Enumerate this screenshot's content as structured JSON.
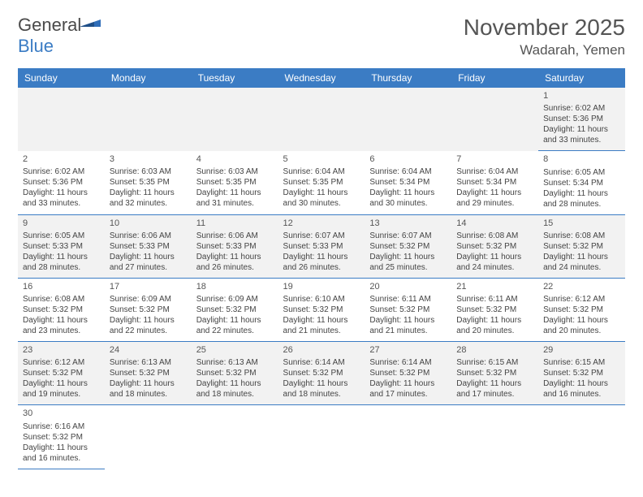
{
  "header": {
    "logo_general": "General",
    "logo_blue": "Blue",
    "month_title": "November 2025",
    "location": "Wadarah, Yemen"
  },
  "colors": {
    "header_bg": "#3b7cc4",
    "header_text": "#ffffff",
    "row_alt_bg": "#f2f2f2",
    "border": "#3b7cc4",
    "text": "#444444",
    "title_text": "#555555"
  },
  "calendar": {
    "day_headers": [
      "Sunday",
      "Monday",
      "Tuesday",
      "Wednesday",
      "Thursday",
      "Friday",
      "Saturday"
    ],
    "weeks": [
      [
        null,
        null,
        null,
        null,
        null,
        null,
        {
          "n": "1",
          "sr": "6:02 AM",
          "ss": "5:36 PM",
          "dl": "11 hours and 33 minutes."
        }
      ],
      [
        {
          "n": "2",
          "sr": "6:02 AM",
          "ss": "5:36 PM",
          "dl": "11 hours and 33 minutes."
        },
        {
          "n": "3",
          "sr": "6:03 AM",
          "ss": "5:35 PM",
          "dl": "11 hours and 32 minutes."
        },
        {
          "n": "4",
          "sr": "6:03 AM",
          "ss": "5:35 PM",
          "dl": "11 hours and 31 minutes."
        },
        {
          "n": "5",
          "sr": "6:04 AM",
          "ss": "5:35 PM",
          "dl": "11 hours and 30 minutes."
        },
        {
          "n": "6",
          "sr": "6:04 AM",
          "ss": "5:34 PM",
          "dl": "11 hours and 30 minutes."
        },
        {
          "n": "7",
          "sr": "6:04 AM",
          "ss": "5:34 PM",
          "dl": "11 hours and 29 minutes."
        },
        {
          "n": "8",
          "sr": "6:05 AM",
          "ss": "5:34 PM",
          "dl": "11 hours and 28 minutes."
        }
      ],
      [
        {
          "n": "9",
          "sr": "6:05 AM",
          "ss": "5:33 PM",
          "dl": "11 hours and 28 minutes."
        },
        {
          "n": "10",
          "sr": "6:06 AM",
          "ss": "5:33 PM",
          "dl": "11 hours and 27 minutes."
        },
        {
          "n": "11",
          "sr": "6:06 AM",
          "ss": "5:33 PM",
          "dl": "11 hours and 26 minutes."
        },
        {
          "n": "12",
          "sr": "6:07 AM",
          "ss": "5:33 PM",
          "dl": "11 hours and 26 minutes."
        },
        {
          "n": "13",
          "sr": "6:07 AM",
          "ss": "5:32 PM",
          "dl": "11 hours and 25 minutes."
        },
        {
          "n": "14",
          "sr": "6:08 AM",
          "ss": "5:32 PM",
          "dl": "11 hours and 24 minutes."
        },
        {
          "n": "15",
          "sr": "6:08 AM",
          "ss": "5:32 PM",
          "dl": "11 hours and 24 minutes."
        }
      ],
      [
        {
          "n": "16",
          "sr": "6:08 AM",
          "ss": "5:32 PM",
          "dl": "11 hours and 23 minutes."
        },
        {
          "n": "17",
          "sr": "6:09 AM",
          "ss": "5:32 PM",
          "dl": "11 hours and 22 minutes."
        },
        {
          "n": "18",
          "sr": "6:09 AM",
          "ss": "5:32 PM",
          "dl": "11 hours and 22 minutes."
        },
        {
          "n": "19",
          "sr": "6:10 AM",
          "ss": "5:32 PM",
          "dl": "11 hours and 21 minutes."
        },
        {
          "n": "20",
          "sr": "6:11 AM",
          "ss": "5:32 PM",
          "dl": "11 hours and 21 minutes."
        },
        {
          "n": "21",
          "sr": "6:11 AM",
          "ss": "5:32 PM",
          "dl": "11 hours and 20 minutes."
        },
        {
          "n": "22",
          "sr": "6:12 AM",
          "ss": "5:32 PM",
          "dl": "11 hours and 20 minutes."
        }
      ],
      [
        {
          "n": "23",
          "sr": "6:12 AM",
          "ss": "5:32 PM",
          "dl": "11 hours and 19 minutes."
        },
        {
          "n": "24",
          "sr": "6:13 AM",
          "ss": "5:32 PM",
          "dl": "11 hours and 18 minutes."
        },
        {
          "n": "25",
          "sr": "6:13 AM",
          "ss": "5:32 PM",
          "dl": "11 hours and 18 minutes."
        },
        {
          "n": "26",
          "sr": "6:14 AM",
          "ss": "5:32 PM",
          "dl": "11 hours and 18 minutes."
        },
        {
          "n": "27",
          "sr": "6:14 AM",
          "ss": "5:32 PM",
          "dl": "11 hours and 17 minutes."
        },
        {
          "n": "28",
          "sr": "6:15 AM",
          "ss": "5:32 PM",
          "dl": "11 hours and 17 minutes."
        },
        {
          "n": "29",
          "sr": "6:15 AM",
          "ss": "5:32 PM",
          "dl": "11 hours and 16 minutes."
        }
      ],
      [
        {
          "n": "30",
          "sr": "6:16 AM",
          "ss": "5:32 PM",
          "dl": "11 hours and 16 minutes."
        },
        null,
        null,
        null,
        null,
        null,
        null
      ]
    ],
    "labels": {
      "sunrise": "Sunrise:",
      "sunset": "Sunset:",
      "daylight": "Daylight:"
    }
  }
}
